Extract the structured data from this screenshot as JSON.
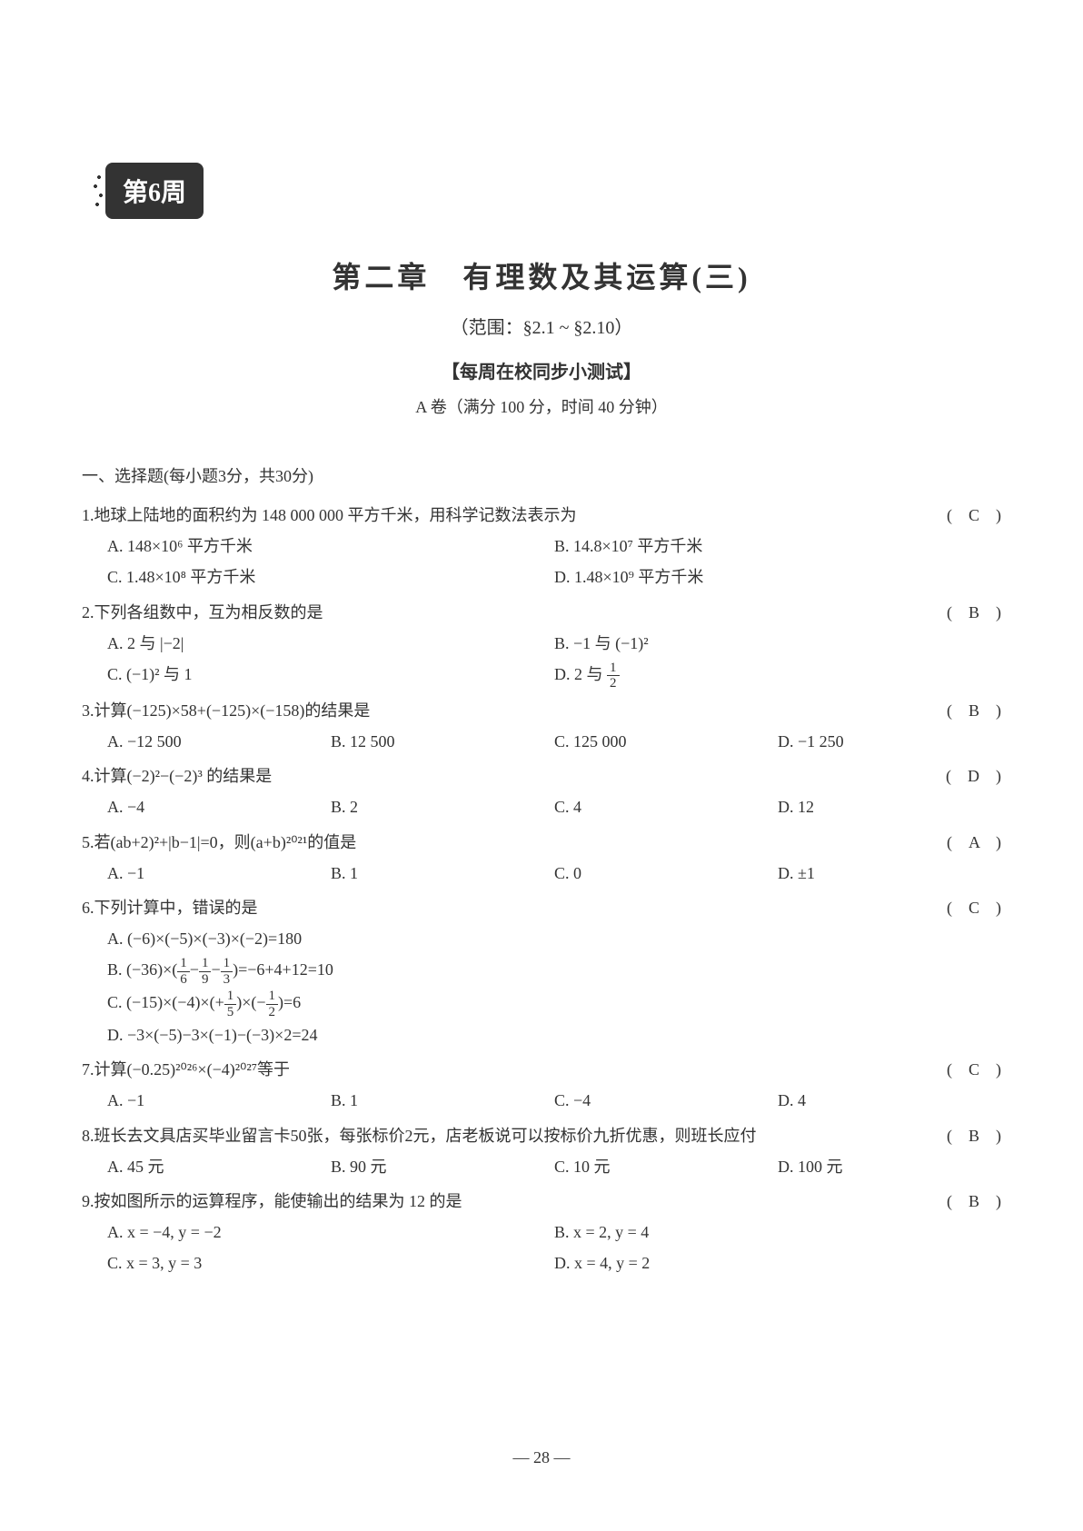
{
  "colors": {
    "text": "#333333",
    "background": "#ffffff",
    "badge_bg": "#333333",
    "badge_text": "#ffffff"
  },
  "typography": {
    "body_font": "SimSun",
    "title_fontsize": 32,
    "body_fontsize": 18,
    "subtitle_fontsize": 20
  },
  "week_badge": "第6周",
  "chapter_title": "第二章　有理数及其运算(三)",
  "range": "（范围：§2.1 ~ §2.10）",
  "subtitle": "【每周在校同步小测试】",
  "paper_info": "A 卷（满分 100 分，时间 40 分钟）",
  "section_head": "一、选择题(每小题3分，共30分)",
  "questions": [
    {
      "num": "1.",
      "text": "地球上陆地的面积约为 148 000 000 平方千米，用科学记数法表示为",
      "answer": "C",
      "layout": "two-col",
      "choices": [
        "A. 148×10⁶ 平方千米",
        "B. 14.8×10⁷ 平方千米",
        "C. 1.48×10⁸ 平方千米",
        "D. 1.48×10⁹ 平方千米"
      ]
    },
    {
      "num": "2.",
      "text": "下列各组数中，互为相反数的是",
      "answer": "B",
      "layout": "two-col",
      "choices": [
        "A. 2 与 |−2|",
        "B. −1 与 (−1)²",
        "C. (−1)² 与 1",
        "D. 2 与 __FRAC_1_2__"
      ]
    },
    {
      "num": "3.",
      "text": "计算(−125)×58+(−125)×(−158)的结果是",
      "answer": "B",
      "layout": "four-col",
      "choices": [
        "A. −12 500",
        "B. 12 500",
        "C. 125 000",
        "D. −1 250"
      ]
    },
    {
      "num": "4.",
      "text": "计算(−2)²−(−2)³ 的结果是",
      "answer": "D",
      "layout": "four-col",
      "choices": [
        "A. −4",
        "B. 2",
        "C. 4",
        "D. 12"
      ]
    },
    {
      "num": "5.",
      "text": "若(ab+2)²+|b−1|=0，则(a+b)²⁰²¹的值是",
      "answer": "A",
      "layout": "four-col",
      "choices": [
        "A. −1",
        "B. 1",
        "C. 0",
        "D. ±1"
      ]
    },
    {
      "num": "6.",
      "text": "下列计算中，错误的是",
      "answer": "C",
      "layout": "one-col",
      "choices": [
        "A. (−6)×(−5)×(−3)×(−2)=180",
        "B. (−36)×(__FRAC_1_6__−__FRAC_1_9__−__FRAC_1_3__)=−6+4+12=10",
        "C. (−15)×(−4)×(+__FRAC_1_5__)×(−__FRAC_1_2__)=6",
        "D. −3×(−5)−3×(−1)−(−3)×2=24"
      ]
    },
    {
      "num": "7.",
      "text": "计算(−0.25)²⁰²⁶×(−4)²⁰²⁷等于",
      "answer": "C",
      "layout": "four-col",
      "choices": [
        "A. −1",
        "B. 1",
        "C. −4",
        "D. 4"
      ]
    },
    {
      "num": "8.",
      "text": "班长去文具店买毕业留言卡50张，每张标价2元，店老板说可以按标价九折优惠，则班长应付",
      "answer": "B",
      "layout": "four-col",
      "choices": [
        "A. 45 元",
        "B. 90 元",
        "C. 10 元",
        "D. 100 元"
      ]
    },
    {
      "num": "9.",
      "text": "按如图所示的运算程序，能使输出的结果为 12 的是",
      "answer": "B",
      "layout": "two-col",
      "choices": [
        "A. x = −4, y = −2",
        "B. x = 2, y = 4",
        "C. x = 3, y = 3",
        "D. x = 4, y = 2"
      ]
    }
  ],
  "page_number": "— 28 —"
}
